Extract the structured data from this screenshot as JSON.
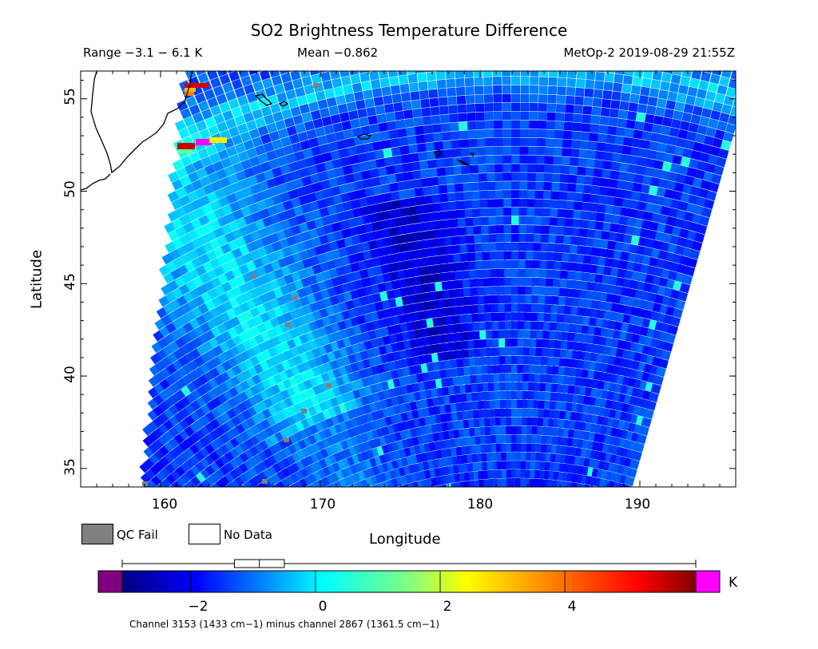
{
  "header": {
    "title": "SO2 Brightness Temperature Difference",
    "range": "Range −3.1 − 6.1 K",
    "mean": "Mean −0.862",
    "satellite": "MetOp-2 2019-08-29 21:55Z"
  },
  "map": {
    "xlabel": "Longitude",
    "ylabel": "Latitude",
    "x_ticks": [
      "160",
      "170",
      "180",
      "190"
    ],
    "y_ticks": [
      "35",
      "40",
      "45",
      "50",
      "55"
    ],
    "lon_range": [
      155,
      196
    ],
    "lat_range": [
      34,
      56.5
    ]
  },
  "legend": {
    "qc_fail": "QC Fail",
    "no_data": "No Data"
  },
  "colorbar": {
    "unit": "K",
    "ticks": [
      "−2",
      "0",
      "2",
      "4"
    ],
    "tick_values": [
      -2,
      0,
      2,
      4
    ],
    "range": [
      -3.1,
      6.1
    ],
    "below_color": "#800080",
    "above_color": "#ff00ff",
    "boxplot": {
      "min": -3.1,
      "q1": -1.3,
      "median": -0.9,
      "q3": -0.5,
      "max": 6.1
    }
  },
  "footnote": "Channel 3153 (1433 cm−1) minus channel 2867 (1361.5 cm−1)",
  "colors": {
    "qc_fail": "#808080",
    "coast": "#000000"
  }
}
